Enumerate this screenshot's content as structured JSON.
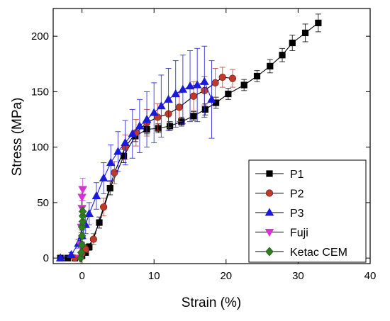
{
  "chart_data": {
    "type": "line",
    "xlabel": "Strain (%)",
    "ylabel": "Stress (MPa)",
    "xlim": [
      -4,
      40
    ],
    "ylim": [
      -5,
      225
    ],
    "xticks": [
      0,
      10,
      20,
      30,
      40
    ],
    "yticks": [
      0,
      50,
      100,
      150,
      200
    ],
    "grid": false,
    "legend_position": "bottom-right",
    "series": [
      {
        "name": "P1",
        "color": "#000000",
        "marker": "square",
        "x": [
          -3.0,
          -2.0,
          -1.0,
          0.0,
          0.5,
          1.0,
          2.4,
          3.9,
          5.8,
          7.4,
          9.0,
          10.6,
          12.2,
          13.8,
          15.5,
          17.1,
          18.6,
          20.3,
          22.5,
          24.3,
          26.1,
          27.8,
          29.2,
          31.0,
          32.8
        ],
        "y": [
          0,
          0,
          0,
          2,
          5,
          10,
          32,
          63,
          92,
          110,
          116,
          117,
          119,
          123,
          128,
          134,
          140,
          148,
          156,
          164,
          173,
          183,
          194,
          203,
          212
        ],
        "err": [
          0,
          0,
          0,
          1,
          2,
          3,
          5,
          6,
          6,
          5,
          4,
          4,
          4,
          4,
          4,
          5,
          5,
          5,
          5,
          5,
          6,
          6,
          7,
          8,
          8
        ]
      },
      {
        "name": "P2",
        "color": "#c0392b",
        "marker": "circle",
        "x": [
          -1.0,
          0.0,
          0.5,
          1.6,
          3.0,
          4.5,
          6.0,
          7.5,
          9.0,
          10.5,
          12.0,
          13.5,
          15.5,
          17.0,
          18.5,
          19.5,
          20.9
        ],
        "y": [
          0,
          4,
          8,
          17,
          46,
          77,
          100,
          113,
          122,
          127,
          130,
          136,
          146,
          151,
          158,
          163,
          162
        ],
        "err": [
          0,
          2,
          3,
          5,
          8,
          10,
          11,
          12,
          12,
          12,
          12,
          13,
          13,
          13,
          13,
          9,
          8
        ]
      },
      {
        "name": "P3",
        "color": "#1a1adb",
        "marker": "triangle",
        "x": [
          -3.0,
          -1.5,
          -0.5,
          0.0,
          0.5,
          1.0,
          2.0,
          3.0,
          4.0,
          5.0,
          6.0,
          7.0,
          8.0,
          9.0,
          10.0,
          11.0,
          12.0,
          13.0,
          14.0,
          15.0,
          16.0,
          17.0,
          18.0
        ],
        "y": [
          0,
          3,
          13,
          20,
          30,
          40,
          56,
          72,
          86,
          96,
          104,
          112,
          119,
          125,
          131,
          137,
          143,
          148,
          152,
          155,
          156,
          159,
          143
        ],
        "err": [
          0,
          2,
          4,
          6,
          8,
          10,
          12,
          14,
          16,
          18,
          20,
          22,
          24,
          25,
          27,
          28,
          28,
          30,
          31,
          32,
          33,
          32,
          35
        ]
      },
      {
        "name": "Fuji",
        "color": "#d633d6",
        "marker": "triangle-down",
        "x": [
          -0.3,
          -0.2,
          -0.1,
          0.0,
          0.0,
          0.1
        ],
        "y": [
          0,
          12,
          28,
          45,
          55,
          62
        ],
        "err": [
          0,
          3,
          5,
          7,
          9,
          10
        ]
      },
      {
        "name": "Ketac CEM",
        "color": "#2e7d1f",
        "marker": "diamond",
        "x": [
          -0.2,
          -0.1,
          0.0,
          0.0,
          0.0,
          0.1,
          0.1,
          0.1
        ],
        "y": [
          0,
          5,
          12,
          20,
          28,
          33,
          38,
          42
        ],
        "err": [
          0,
          1,
          2,
          3,
          3,
          4,
          4,
          4
        ]
      }
    ]
  }
}
